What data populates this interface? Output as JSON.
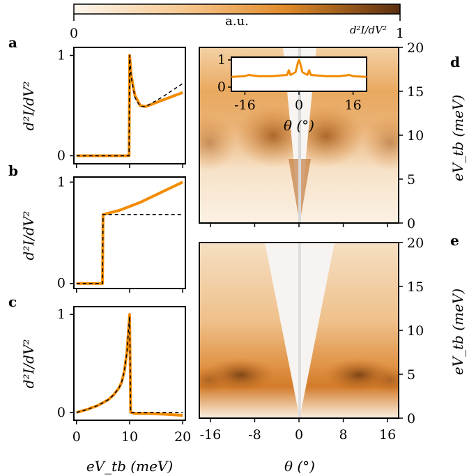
{
  "colorbar": {
    "label": "a.u.",
    "quantity": "d²I/dV²",
    "min_label": "0",
    "max_label": "1",
    "colors": [
      "#fdf6ee",
      "#f0a24a",
      "#d9771a",
      "#5a2f10"
    ]
  },
  "panel_labels": {
    "a": "a",
    "b": "b",
    "c": "c",
    "d": "d",
    "e": "e"
  },
  "left_column": {
    "ylabel": "d²I/dV²",
    "xlabel": "eV_tb (meV)",
    "xticks": [
      "0",
      "10",
      "20"
    ],
    "yticks": [
      "0",
      "1"
    ],
    "series_colors": {
      "measured": "#f28c00",
      "model": "#000000"
    }
  },
  "right_column": {
    "xlabel": "θ (°)",
    "ylabel": "eV_tb (meV)",
    "xticks": [
      "-16",
      "-8",
      "0",
      "8",
      "16"
    ],
    "yticks": [
      "0",
      "5",
      "10",
      "15",
      "20"
    ],
    "inset": {
      "xlabel": "θ (°)",
      "xticks": [
        "-16",
        "0",
        "16"
      ],
      "yticks": [
        "0",
        "1"
      ],
      "color": "#f28c00"
    }
  },
  "chart_data": [
    {
      "panel": "a",
      "type": "line",
      "xlabel": "eV_tb (meV)",
      "ylabel": "d²I/dV²",
      "xlim": [
        -0.5,
        20.5
      ],
      "ylim": [
        -0.08,
        1.08
      ],
      "series": [
        {
          "style": "solid-orange",
          "x": [
            0,
            9.9,
            10,
            10.3,
            11,
            12,
            13,
            14,
            16,
            18,
            20
          ],
          "y": [
            0,
            0,
            1.0,
            0.8,
            0.6,
            0.5,
            0.49,
            0.51,
            0.55,
            0.59,
            0.63
          ]
        },
        {
          "style": "dashed-black",
          "x": [
            0,
            9.9,
            10,
            10.3,
            11,
            12,
            13,
            14,
            16,
            18,
            20
          ],
          "y": [
            0,
            0,
            1.0,
            0.78,
            0.58,
            0.49,
            0.49,
            0.52,
            0.58,
            0.65,
            0.72
          ]
        }
      ]
    },
    {
      "panel": "b",
      "type": "line",
      "xlabel": "eV_tb (meV)",
      "ylabel": "d²I/dV²",
      "xlim": [
        -0.5,
        20.5
      ],
      "ylim": [
        -0.05,
        1.05
      ],
      "series": [
        {
          "style": "solid-orange",
          "x": [
            0,
            4.9,
            5,
            8,
            10,
            12,
            14,
            16,
            18,
            20
          ],
          "y": [
            0,
            0,
            0.68,
            0.72,
            0.76,
            0.8,
            0.85,
            0.9,
            0.95,
            1.0
          ]
        },
        {
          "style": "dashed-black",
          "x": [
            0,
            4.9,
            5,
            20
          ],
          "y": [
            0,
            0,
            0.68,
            0.68
          ]
        }
      ]
    },
    {
      "panel": "c",
      "type": "line",
      "xlabel": "eV_tb (meV)",
      "ylabel": "d²I/dV²",
      "xlim": [
        -0.5,
        20.5
      ],
      "ylim": [
        -0.08,
        1.08
      ],
      "series": [
        {
          "style": "solid-orange",
          "x": [
            0,
            2,
            4,
            6,
            7,
            8,
            8.5,
            9,
            9.5,
            9.8,
            10,
            10.2,
            11,
            14,
            17,
            20
          ],
          "y": [
            0,
            0.03,
            0.07,
            0.13,
            0.18,
            0.25,
            0.31,
            0.42,
            0.62,
            0.85,
            1.0,
            0.0,
            -0.01,
            -0.01,
            -0.02,
            -0.03
          ]
        },
        {
          "style": "dashed-black",
          "x": [
            0,
            2,
            4,
            6,
            7,
            8,
            8.5,
            9,
            9.5,
            9.8,
            10,
            10.2,
            11,
            14,
            17,
            20
          ],
          "y": [
            0,
            0.03,
            0.07,
            0.13,
            0.18,
            0.25,
            0.31,
            0.42,
            0.62,
            0.85,
            0.98,
            0.0,
            0.0,
            0.0,
            0.0,
            0.0
          ]
        }
      ]
    },
    {
      "panel": "d",
      "type": "heatmap",
      "xlabel": "θ (°)",
      "ylabel": "eV_tb (meV)",
      "xlim": [
        -18,
        18
      ],
      "ylim": [
        0,
        20
      ],
      "description_values": {
        "v_gap_slope_meV_per_deg": 2.5,
        "bright_band_meV": [
          8,
          14
        ],
        "max_intensity_near": {
          "theta": [
            -2,
            2
          ],
          "energy_meV": [
            4,
            10
          ]
        }
      }
    },
    {
      "panel": "d-inset",
      "type": "line",
      "xlabel": "θ (°)",
      "xlim": [
        -20,
        20
      ],
      "ylim": [
        0,
        1
      ],
      "series": [
        {
          "style": "solid-orange",
          "x": [
            -20,
            -16,
            -15,
            -12,
            -8,
            -3.5,
            -3,
            -2.5,
            -1,
            -0.3,
            0,
            0.3,
            1,
            2.5,
            3,
            3.5,
            8,
            12,
            15,
            16,
            20
          ],
          "y": [
            0.38,
            0.4,
            0.45,
            0.4,
            0.4,
            0.45,
            0.62,
            0.45,
            0.55,
            0.9,
            1.0,
            0.9,
            0.55,
            0.45,
            0.62,
            0.45,
            0.4,
            0.4,
            0.45,
            0.4,
            0.38
          ]
        }
      ]
    },
    {
      "panel": "e",
      "type": "heatmap",
      "xlabel": "θ (°)",
      "ylabel": "eV_tb (meV)",
      "xlim": [
        -18,
        18
      ],
      "ylim": [
        0,
        20
      ],
      "description_values": {
        "v_gap_slope_meV_per_deg": 1.5,
        "max_intensity_near": {
          "theta": [
            -7,
            7
          ],
          "energy_meV": [
            4,
            7
          ]
        }
      }
    }
  ]
}
